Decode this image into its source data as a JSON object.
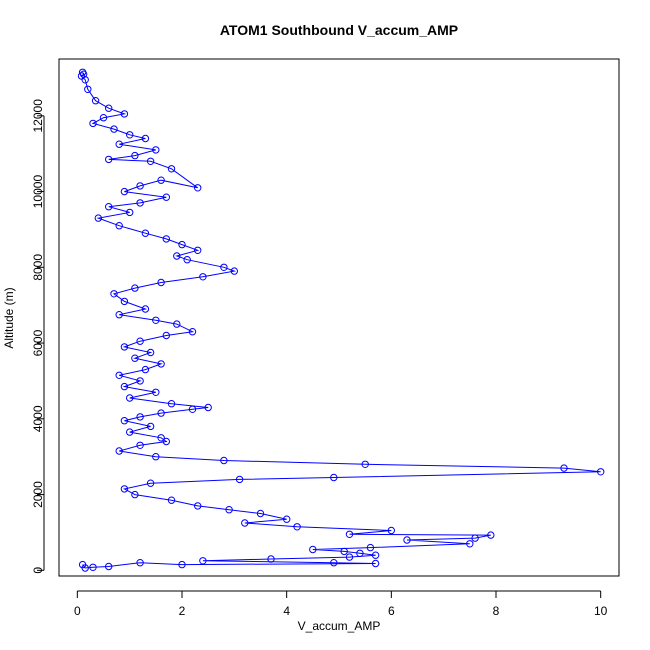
{
  "chart_data": {
    "type": "scatter",
    "title": "ATOM1 Southbound V_accum_AMP",
    "xlabel": "V_accum_AMP",
    "ylabel": "Altitude (m)",
    "xlim": [
      -0.35,
      10.35
    ],
    "ylim": [
      -150,
      13500
    ],
    "xticks": [
      "0",
      "2",
      "4",
      "6",
      "8",
      "10"
    ],
    "yticks": [
      "0",
      "2000",
      "4000",
      "6000",
      "8000",
      "10000",
      "12000"
    ],
    "grid": false,
    "legend": "none",
    "marker": "open-circle",
    "connected": true,
    "series": [
      {
        "color": "#0000ff",
        "points": [
          [
            0.1,
            13150
          ],
          [
            0.12,
            13100
          ],
          [
            0.08,
            13050
          ],
          [
            0.15,
            12950
          ],
          [
            0.2,
            12700
          ],
          [
            0.35,
            12400
          ],
          [
            0.6,
            12200
          ],
          [
            0.9,
            12050
          ],
          [
            0.5,
            11950
          ],
          [
            0.3,
            11800
          ],
          [
            0.7,
            11650
          ],
          [
            1.0,
            11500
          ],
          [
            1.3,
            11400
          ],
          [
            0.8,
            11250
          ],
          [
            1.5,
            11100
          ],
          [
            1.1,
            10950
          ],
          [
            0.6,
            10850
          ],
          [
            1.4,
            10800
          ],
          [
            1.8,
            10600
          ],
          [
            2.3,
            10100
          ],
          [
            1.6,
            10300
          ],
          [
            1.2,
            10150
          ],
          [
            0.9,
            10000
          ],
          [
            1.7,
            9850
          ],
          [
            1.2,
            9700
          ],
          [
            0.6,
            9600
          ],
          [
            1.0,
            9450
          ],
          [
            0.4,
            9300
          ],
          [
            0.8,
            9100
          ],
          [
            1.3,
            8900
          ],
          [
            1.7,
            8750
          ],
          [
            2.0,
            8600
          ],
          [
            2.3,
            8450
          ],
          [
            1.9,
            8300
          ],
          [
            2.1,
            8200
          ],
          [
            2.8,
            8000
          ],
          [
            3.0,
            7900
          ],
          [
            2.4,
            7750
          ],
          [
            1.6,
            7600
          ],
          [
            1.1,
            7450
          ],
          [
            0.7,
            7300
          ],
          [
            0.9,
            7100
          ],
          [
            1.3,
            6900
          ],
          [
            0.8,
            6750
          ],
          [
            1.5,
            6600
          ],
          [
            1.9,
            6500
          ],
          [
            2.2,
            6300
          ],
          [
            1.7,
            6200
          ],
          [
            1.2,
            6050
          ],
          [
            0.9,
            5900
          ],
          [
            1.4,
            5750
          ],
          [
            1.1,
            5600
          ],
          [
            1.6,
            5450
          ],
          [
            1.3,
            5300
          ],
          [
            0.8,
            5150
          ],
          [
            1.2,
            5000
          ],
          [
            0.9,
            4850
          ],
          [
            1.5,
            4700
          ],
          [
            1.0,
            4550
          ],
          [
            1.8,
            4400
          ],
          [
            2.5,
            4300
          ],
          [
            2.2,
            4250
          ],
          [
            1.6,
            4150
          ],
          [
            1.2,
            4050
          ],
          [
            0.9,
            3950
          ],
          [
            1.4,
            3800
          ],
          [
            1.0,
            3650
          ],
          [
            1.6,
            3500
          ],
          [
            1.7,
            3400
          ],
          [
            1.2,
            3300
          ],
          [
            0.8,
            3150
          ],
          [
            1.5,
            3000
          ],
          [
            2.8,
            2900
          ],
          [
            5.5,
            2800
          ],
          [
            9.3,
            2700
          ],
          [
            10.0,
            2600
          ],
          [
            4.9,
            2450
          ],
          [
            3.1,
            2400
          ],
          [
            1.4,
            2300
          ],
          [
            0.9,
            2150
          ],
          [
            1.1,
            2000
          ],
          [
            1.8,
            1850
          ],
          [
            2.3,
            1700
          ],
          [
            2.9,
            1600
          ],
          [
            3.5,
            1500
          ],
          [
            4.0,
            1350
          ],
          [
            3.2,
            1250
          ],
          [
            4.2,
            1150
          ],
          [
            6.0,
            1050
          ],
          [
            5.2,
            950
          ],
          [
            7.9,
            930
          ],
          [
            7.6,
            850
          ],
          [
            6.3,
            800
          ],
          [
            7.5,
            700
          ],
          [
            5.6,
            600
          ],
          [
            4.5,
            550
          ],
          [
            5.1,
            500
          ],
          [
            5.4,
            450
          ],
          [
            5.7,
            400
          ],
          [
            5.2,
            350
          ],
          [
            3.7,
            300
          ],
          [
            2.4,
            250
          ],
          [
            4.9,
            200
          ],
          [
            5.7,
            180
          ],
          [
            2.0,
            150
          ],
          [
            1.2,
            200
          ],
          [
            0.6,
            100
          ],
          [
            0.3,
            80
          ],
          [
            0.15,
            60
          ],
          [
            0.1,
            150
          ]
        ]
      }
    ]
  }
}
